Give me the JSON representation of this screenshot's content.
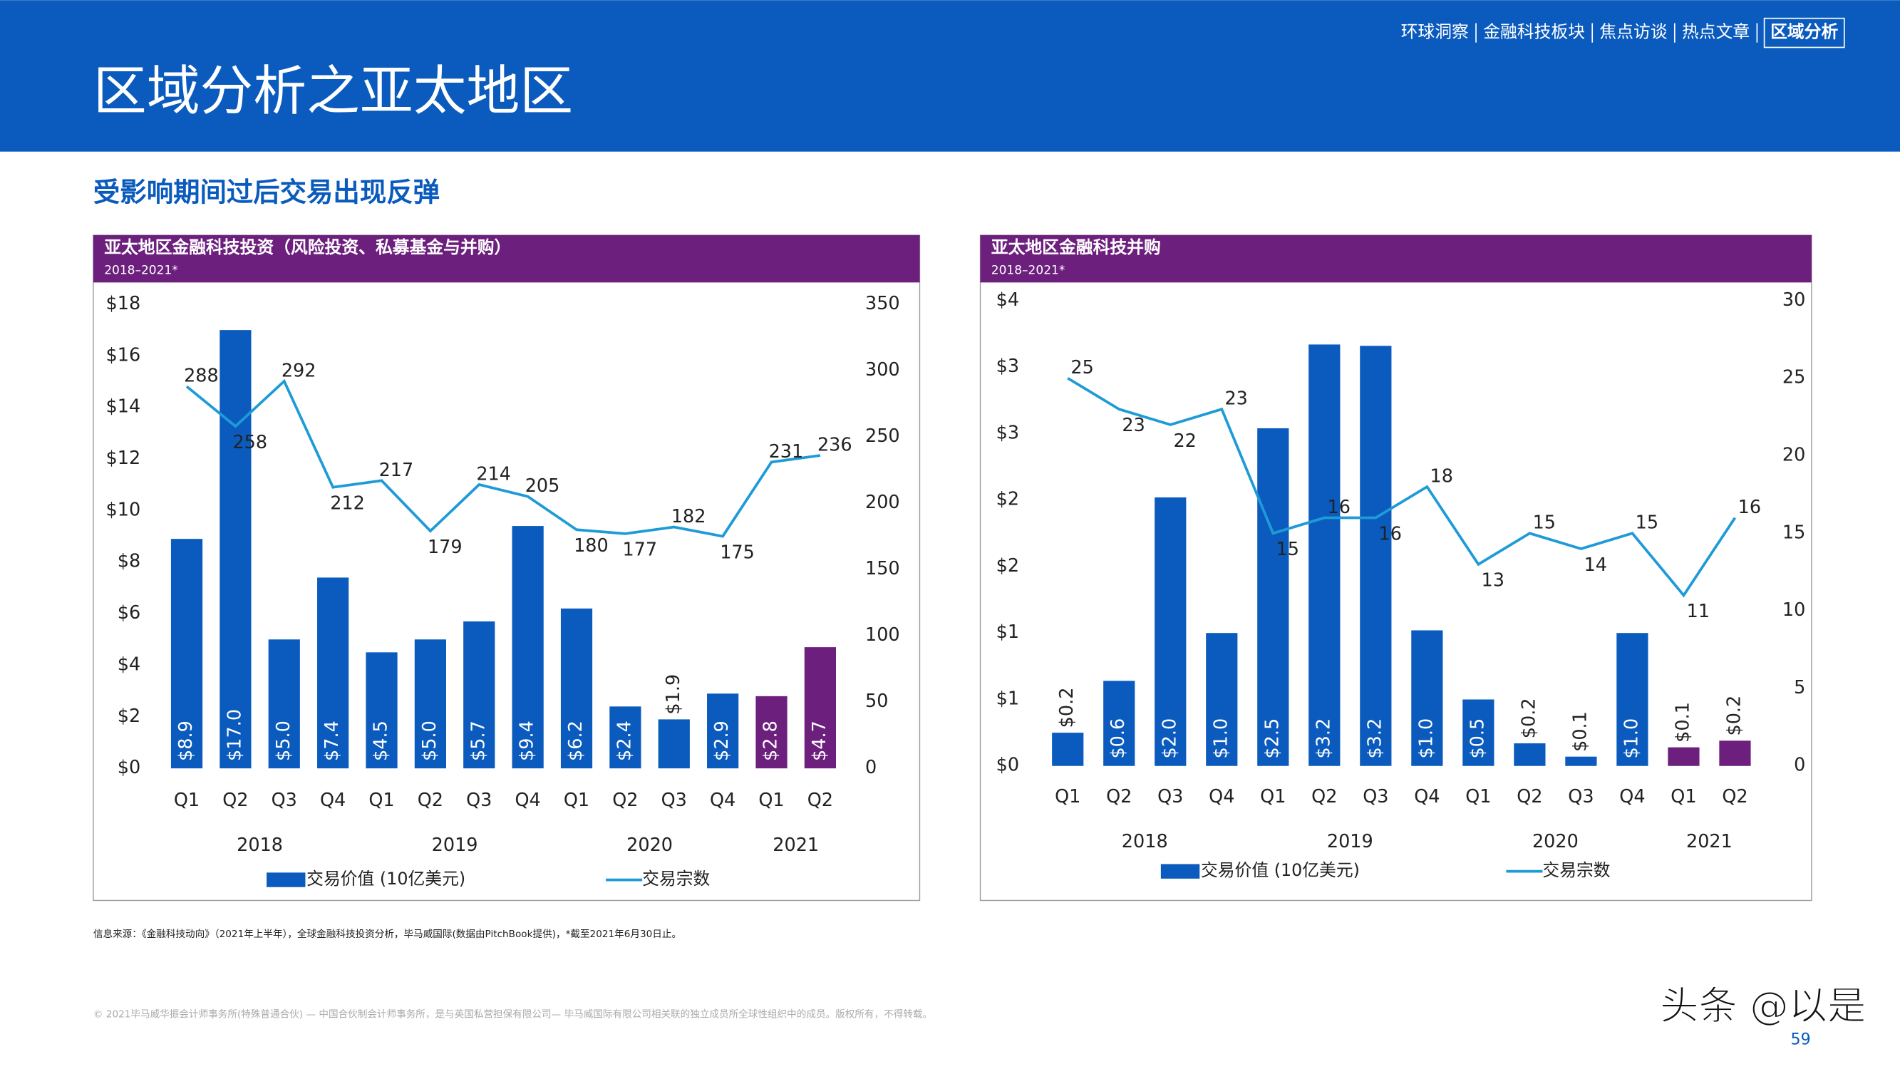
{
  "header": {
    "nav": [
      "环球洞察",
      "金融科技板块",
      "焦点访谈",
      "热点文章",
      "区域分析"
    ],
    "title": "区域分析之亚太地区",
    "subtitle": "受影响期间过后交易出现反弹"
  },
  "chart_data": [
    {
      "type": "combo",
      "title": "亚太地区金融科技投资（风险投资、私募基金与并购）",
      "subtitle": "2018–2021*",
      "categories": [
        "Q1",
        "Q2",
        "Q3",
        "Q4",
        "Q1",
        "Q2",
        "Q3",
        "Q4",
        "Q1",
        "Q2",
        "Q3",
        "Q4",
        "Q1",
        "Q2"
      ],
      "groups": [
        {
          "label": "2018",
          "span": 4
        },
        {
          "label": "2019",
          "span": 4
        },
        {
          "label": "2020",
          "span": 4
        },
        {
          "label": "2021",
          "span": 2
        }
      ],
      "series": [
        {
          "name": "交易价值 (10亿美元)",
          "type": "bar",
          "color": "#0a5bbd",
          "colors": [
            "#0a5bbd",
            "#0a5bbd",
            "#0a5bbd",
            "#0a5bbd",
            "#0a5bbd",
            "#0a5bbd",
            "#0a5bbd",
            "#0a5bbd",
            "#0a5bbd",
            "#0a5bbd",
            "#0a5bbd",
            "#0a5bbd",
            "#6c1f7d",
            "#6c1f7d"
          ],
          "values": [
            8.9,
            17.0,
            5.0,
            7.4,
            4.5,
            5.0,
            5.7,
            9.4,
            6.2,
            2.4,
            1.9,
            2.9,
            2.8,
            4.7
          ],
          "value_labels": [
            "$8.9",
            "$17.0",
            "$5.0",
            "$7.4",
            "$4.5",
            "$5.0",
            "$5.7",
            "$9.4",
            "$6.2",
            "$2.4",
            "$1.9",
            "$2.9",
            "$2.8",
            "$4.7"
          ]
        },
        {
          "name": "交易宗数",
          "type": "line",
          "axis": "y2",
          "color": "#1e9bd7",
          "values": [
            288,
            258,
            292,
            212,
            217,
            179,
            214,
            205,
            180,
            177,
            182,
            175,
            231,
            236
          ]
        }
      ],
      "ylim": [
        0,
        18
      ],
      "yticks": [
        {
          "value": 0,
          "label": "$0"
        },
        {
          "value": 2,
          "label": "$2"
        },
        {
          "value": 4,
          "label": "$4"
        },
        {
          "value": 6,
          "label": "$6"
        },
        {
          "value": 8,
          "label": "$8"
        },
        {
          "value": 10,
          "label": "$10"
        },
        {
          "value": 12,
          "label": "$12"
        },
        {
          "value": 14,
          "label": "$14"
        },
        {
          "value": 16,
          "label": "$16"
        },
        {
          "value": 18,
          "label": "$18"
        }
      ],
      "y2lim": [
        0,
        350
      ],
      "y2ticks": [
        0,
        50,
        100,
        150,
        200,
        250,
        300,
        350
      ]
    },
    {
      "type": "combo",
      "title": "亚太地区金融科技并购",
      "subtitle": "2018–2021*",
      "categories": [
        "Q1",
        "Q2",
        "Q3",
        "Q4",
        "Q1",
        "Q2",
        "Q3",
        "Q4",
        "Q1",
        "Q2",
        "Q3",
        "Q4",
        "Q1",
        "Q2"
      ],
      "groups": [
        {
          "label": "2018",
          "span": 4
        },
        {
          "label": "2019",
          "span": 4
        },
        {
          "label": "2020",
          "span": 4
        },
        {
          "label": "2021",
          "span": 2
        }
      ],
      "series": [
        {
          "name": "交易价值 (10亿美元)",
          "type": "bar",
          "color": "#0a5bbd",
          "colors": [
            "#0a5bbd",
            "#0a5bbd",
            "#0a5bbd",
            "#0a5bbd",
            "#0a5bbd",
            "#0a5bbd",
            "#0a5bbd",
            "#0a5bbd",
            "#0a5bbd",
            "#0a5bbd",
            "#0a5bbd",
            "#0a5bbd",
            "#6c1f7d",
            "#6c1f7d"
          ],
          "values": [
            0.25,
            0.64,
            2.02,
            1.0,
            2.54,
            3.17,
            3.16,
            1.02,
            0.5,
            0.17,
            0.07,
            1.0,
            0.14,
            0.19
          ],
          "value_labels": [
            "$0.2",
            "$0.6",
            "$2.0",
            "$1.0",
            "$2.5",
            "$3.2",
            "$3.2",
            "$1.0",
            "$0.5",
            "$0.2",
            "$0.1",
            "$1.0",
            "$0.1",
            "$0.2"
          ]
        },
        {
          "name": "交易宗数",
          "type": "line",
          "axis": "y2",
          "color": "#1e9bd7",
          "values": [
            25,
            23,
            22,
            23,
            15,
            16,
            16,
            18,
            13,
            15,
            14,
            15,
            11,
            16
          ]
        }
      ],
      "ylim": [
        0,
        3.5
      ],
      "yticks": [
        {
          "value": 0,
          "label": "$0"
        },
        {
          "value": 0.5,
          "label": "$1"
        },
        {
          "value": 1,
          "label": "$1"
        },
        {
          "value": 1.5,
          "label": "$2"
        },
        {
          "value": 2,
          "label": "$2"
        },
        {
          "value": 2.5,
          "label": "$3"
        },
        {
          "value": 3,
          "label": "$3"
        },
        {
          "value": 3.5,
          "label": "$4"
        }
      ],
      "y2lim": [
        0,
        30
      ],
      "y2ticks": [
        0,
        5,
        10,
        15,
        20,
        25,
        30
      ]
    }
  ],
  "source": "信息来源：《金融科技动向》（2021年上半年），全球金融科技投资分析，毕马威国际(数据由PitchBook提供)，*截至2021年6月30日止。",
  "footer": "© 2021毕马威华振会计师事务所(特殊普通合伙) — 中国合伙制会计师事务所，是与英国私营担保有限公司— 毕马威国际有限公司相关联的独立成员所全球性组织中的成员。版权所有，不得转载。",
  "page_number": "59",
  "watermark": "头条 @以是"
}
